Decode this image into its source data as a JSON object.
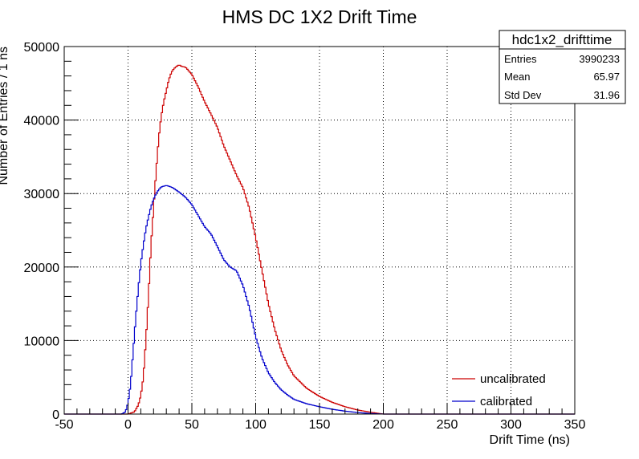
{
  "chart_data": {
    "type": "line",
    "title": "HMS DC 1X2 Drift Time",
    "xlabel": "Drift Time (ns)",
    "ylabel": "Number of Entries / 1 ns",
    "xlim": [
      -50,
      350
    ],
    "ylim": [
      0,
      50000
    ],
    "x_ticks": [
      -50,
      0,
      50,
      100,
      150,
      200,
      250,
      300,
      350
    ],
    "y_ticks": [
      0,
      10000,
      20000,
      30000,
      40000,
      50000
    ],
    "grid": true,
    "legend_position": "bottom-right",
    "stats_box": {
      "name": "hdc1x2_drifttime",
      "rows": [
        {
          "label": "Entries",
          "value": "3990233"
        },
        {
          "label": "Mean",
          "value": "65.97"
        },
        {
          "label": "Std Dev",
          "value": "31.96"
        }
      ]
    },
    "series": [
      {
        "name": "uncalibrated",
        "color": "#cc0000",
        "x": [
          -50,
          0,
          5,
          8,
          10,
          12,
          14,
          16,
          18,
          20,
          22,
          24,
          26,
          28,
          30,
          32,
          34,
          36,
          38,
          40,
          42,
          45,
          50,
          55,
          60,
          65,
          70,
          75,
          80,
          85,
          90,
          95,
          100,
          105,
          110,
          115,
          120,
          125,
          130,
          140,
          150,
          160,
          170,
          180,
          190,
          200,
          350
        ],
        "y": [
          0,
          0,
          300,
          1200,
          2500,
          5000,
          10000,
          16000,
          23000,
          28000,
          33000,
          37500,
          40500,
          42500,
          44000,
          45500,
          46500,
          47000,
          47300,
          47500,
          47300,
          47200,
          46200,
          44500,
          42500,
          40800,
          39000,
          36500,
          34500,
          32500,
          30800,
          28000,
          24000,
          19500,
          15000,
          11500,
          8700,
          6700,
          5200,
          3500,
          2400,
          1600,
          1000,
          550,
          250,
          0,
          0
        ]
      },
      {
        "name": "calibrated",
        "color": "#0000cc",
        "x": [
          -50,
          -5,
          -2,
          0,
          2,
          4,
          6,
          8,
          10,
          12,
          14,
          16,
          18,
          20,
          22,
          24,
          26,
          28,
          30,
          32,
          35,
          40,
          45,
          50,
          55,
          60,
          65,
          70,
          75,
          80,
          85,
          90,
          95,
          100,
          105,
          110,
          115,
          120,
          125,
          130,
          140,
          150,
          160,
          170,
          180,
          190,
          200,
          350
        ],
        "y": [
          0,
          0,
          300,
          1500,
          4000,
          8500,
          13000,
          17000,
          20500,
          23000,
          25200,
          26800,
          28200,
          29200,
          30000,
          30500,
          30900,
          31000,
          31100,
          31000,
          30800,
          30200,
          29500,
          28500,
          27000,
          25500,
          24500,
          22800,
          21000,
          20000,
          19500,
          17500,
          14500,
          10500,
          7600,
          5600,
          4300,
          3300,
          2600,
          2000,
          1400,
          1000,
          650,
          400,
          200,
          80,
          0,
          0
        ]
      }
    ]
  }
}
